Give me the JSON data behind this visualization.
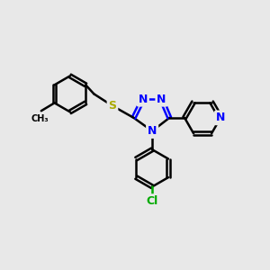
{
  "bg_color": "#e8e8e8",
  "bond_color": "#000000",
  "bond_width": 1.8,
  "atom_colors": {
    "N": "#0000FF",
    "S": "#AAAA00",
    "Cl": "#00AA00",
    "C": "#000000"
  },
  "font_size_atom": 9
}
